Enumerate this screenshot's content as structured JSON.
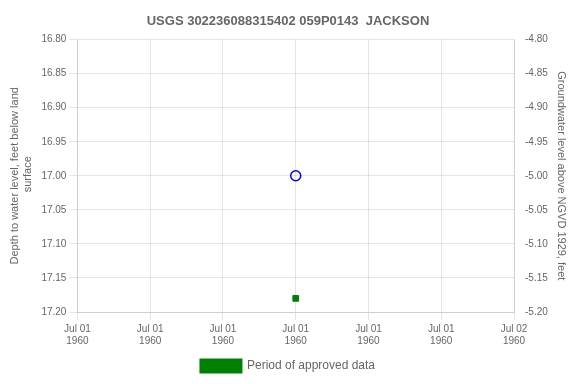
{
  "chart_data": {
    "type": "scatter",
    "title": "USGS 302236088315402 059P0143  JACKSON",
    "ylabel": "Depth to water level, feet below land\n surface",
    "y2label": "Groundwater level above NGVD 1929, feet",
    "categories": [
      "Jul 01\n1960",
      "Jul 01\n1960",
      "Jul 01\n1960",
      "Jul 01\n1960",
      "Jul 01\n1960",
      "Jul 01\n1960",
      "Jul 02\n1960"
    ],
    "series": [
      {
        "color": "#0000ff",
        "marker": "open_circle",
        "values": [
          null,
          null,
          null,
          17.0,
          null,
          null,
          null
        ]
      },
      {
        "name": "Period of approved data",
        "color": "#008000",
        "marker": "square",
        "values": [
          null,
          null,
          null,
          17.18,
          null,
          null,
          null
        ]
      }
    ],
    "ylim": [
      17.2,
      16.8
    ],
    "yticks": [
      {
        "value": 16.8,
        "label": "16.80"
      },
      16.85,
      {
        "value": 16.9,
        "label": "16.90"
      },
      16.95,
      {
        "value": 17.0,
        "label": "17.00"
      },
      17.05,
      {
        "value": 17.1,
        "label": "17.10"
      },
      17.15,
      {
        "value": 17.2,
        "label": "17.20"
      }
    ],
    "y2lim": [
      -5.2,
      -4.8
    ],
    "y2ticks": [
      {
        "value": -4.8,
        "label": "-4.80"
      },
      -4.85,
      {
        "value": -4.9,
        "label": "-4.90"
      },
      -4.95,
      {
        "value": -5.0,
        "label": "-5.00"
      },
      -5.05,
      {
        "value": -5.1,
        "label": "-5.10"
      },
      -5.15,
      {
        "value": -5.2,
        "label": "-5.20"
      }
    ],
    "grid": true,
    "legend": "bottom"
  }
}
